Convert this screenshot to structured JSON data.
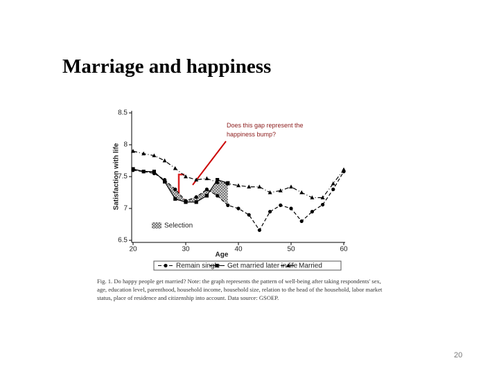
{
  "slide": {
    "title": "Marriage and happiness",
    "page_number": "20"
  },
  "chart_data": {
    "type": "line",
    "x_label": "Age",
    "y_label": "Satisfaction with life",
    "annotation": "Does this gap represent the happiness bump?",
    "caption": "Fig. 1. Do happy people get married? Note: the graph represents the pattern of well-being after taking respondents' sex, age, education level, parenthood, household income, household size, relation to the head of the household, labor market status, place of residence and citizenship into account. Data source: GSOEP.",
    "x": [
      20,
      22,
      24,
      26,
      28,
      30,
      32,
      34,
      36,
      38,
      40,
      42,
      44,
      46,
      48,
      50,
      52,
      54,
      56,
      58,
      60
    ],
    "series": [
      {
        "name": "Remain single",
        "color": "#000000",
        "marker": "circle",
        "dash": "5,3",
        "values": [
          7.6,
          7.58,
          7.55,
          7.45,
          7.3,
          7.12,
          7.18,
          7.3,
          7.2,
          7.05,
          7.0,
          6.9,
          6.66,
          6.95,
          7.05,
          7.0,
          6.8,
          6.95,
          7.06,
          7.3,
          7.58
        ]
      },
      {
        "name": "Get married later in life",
        "color": "#000000",
        "marker": "square",
        "dash": "none",
        "values": [
          7.62,
          7.58,
          7.58,
          7.42,
          7.15,
          7.1,
          7.1,
          7.2,
          7.45,
          7.4,
          null,
          null,
          null,
          null,
          null,
          null,
          null,
          null,
          null,
          null,
          null
        ]
      },
      {
        "name": "Married",
        "color": "#000000",
        "marker": "triangle",
        "dash": "6,3,1,3",
        "values": [
          7.9,
          7.86,
          7.83,
          7.75,
          7.63,
          7.5,
          7.45,
          7.47,
          7.41,
          7.39,
          7.36,
          7.34,
          7.34,
          7.25,
          7.28,
          7.34,
          7.25,
          7.17,
          7.17,
          7.39,
          7.61
        ]
      }
    ],
    "shaded_area": {
      "name": "Selection",
      "between": [
        1,
        0
      ]
    },
    "xlim": [
      20,
      60
    ],
    "xticks": [
      20,
      30,
      40,
      50,
      60
    ],
    "ylim": [
      6.5,
      8.5
    ],
    "yticks": [
      6.5,
      7,
      7.5,
      8,
      8.5
    ]
  }
}
